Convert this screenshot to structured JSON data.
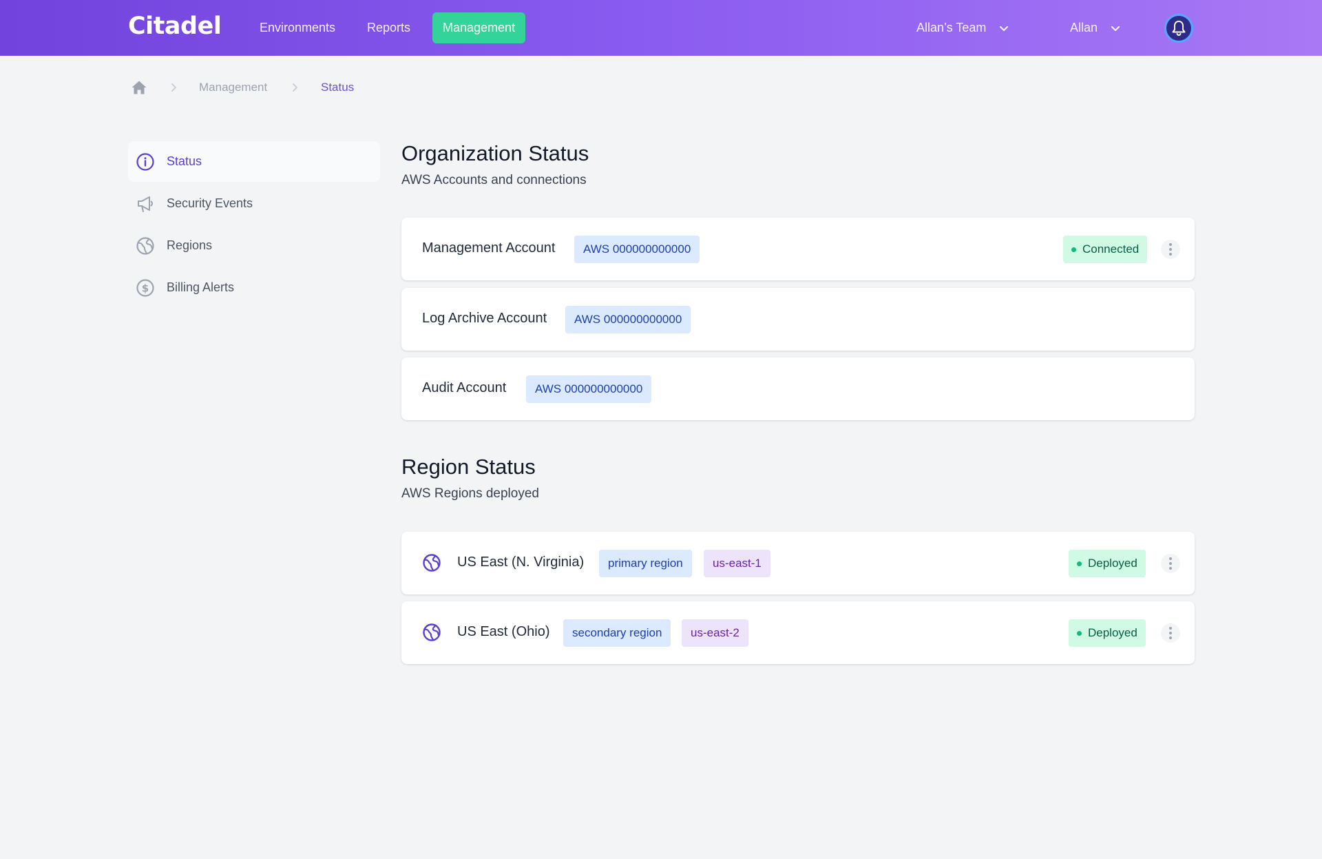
{
  "app": {
    "logo": "Citadel",
    "nav": [
      {
        "label": "Environments",
        "active": false
      },
      {
        "label": "Reports",
        "active": false
      },
      {
        "label": "Management",
        "active": true
      }
    ],
    "team_label": "Allan’s Team",
    "user_label": "Allan"
  },
  "breadcrumb": [
    "Management",
    "Status"
  ],
  "sidebar": {
    "items": [
      {
        "label": "Status",
        "icon": "info-icon",
        "active": true
      },
      {
        "label": "Security Events",
        "icon": "megaphone-icon",
        "active": false
      },
      {
        "label": "Regions",
        "icon": "globe-icon",
        "active": false
      },
      {
        "label": "Billing Alerts",
        "icon": "dollar-icon",
        "active": false
      }
    ]
  },
  "organization": {
    "title": "Organization Status",
    "subtitle": "AWS Accounts and connections",
    "accounts": [
      {
        "name": "Management Account",
        "aws": "AWS 000000000000",
        "status": "Connected"
      },
      {
        "name": "Log Archive Account",
        "aws": "AWS 000000000000"
      },
      {
        "name": "Audit Account",
        "aws": "AWS 000000000000"
      }
    ]
  },
  "regions": {
    "title": "Region Status",
    "subtitle": "AWS Regions deployed",
    "items": [
      {
        "name": "US East (N. Virginia)",
        "role": "primary region",
        "code": "us-east-1",
        "status": "Deployed"
      },
      {
        "name": "US East (Ohio)",
        "role": "secondary region",
        "code": "us-east-2",
        "status": "Deployed"
      }
    ]
  },
  "colors": {
    "header_start": "#7243dd",
    "header_end": "#a878f5",
    "accent_green": "#34d399",
    "active_purple": "#5b3fd0"
  }
}
